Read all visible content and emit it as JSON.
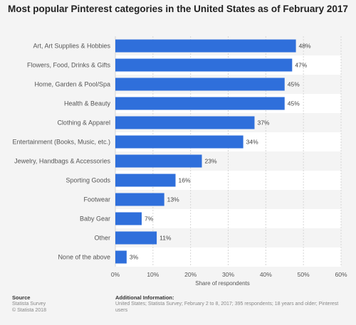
{
  "chart_data": {
    "type": "bar",
    "orientation": "horizontal",
    "title": "Most popular Pinterest categories in the United States as of February 2017",
    "categories": [
      "Art, Art Supplies & Hobbies",
      "Flowers, Food, Drinks & Gifts",
      "Home, Garden & Pool/Spa",
      "Health & Beauty",
      "Clothing & Apparel",
      "Entertainment (Books, Music, etc.)",
      "Jewelry, Handbags & Accessories",
      "Sporting Goods",
      "Footwear",
      "Baby Gear",
      "Other",
      "None of the above"
    ],
    "values": [
      48,
      47,
      45,
      45,
      37,
      34,
      23,
      16,
      13,
      7,
      11,
      3
    ],
    "value_labels": [
      "48%",
      "47%",
      "45%",
      "45%",
      "37%",
      "34%",
      "23%",
      "16%",
      "13%",
      "7%",
      "11%",
      "3%"
    ],
    "xlabel": "Share of respondents",
    "ylabel": "",
    "xlim": [
      0,
      60
    ],
    "xticks": [
      0,
      10,
      20,
      30,
      40,
      50,
      60
    ],
    "xtick_labels": [
      "0%",
      "10%",
      "20%",
      "30%",
      "40%",
      "50%",
      "60%"
    ],
    "grid": true,
    "colors": {
      "bar": "#2f6fdb",
      "stripe": "#ffffff",
      "background": "#f4f4f4"
    }
  },
  "footer": {
    "source_title": "Source",
    "source_line1": "Statista Survey",
    "source_line2": "© Statista 2018",
    "info_title": "Additional Information:",
    "info_text": "United States; Statista Survey; February 2 to 8, 2017; 395 respondents; 18 years and older; Pinterest users"
  }
}
